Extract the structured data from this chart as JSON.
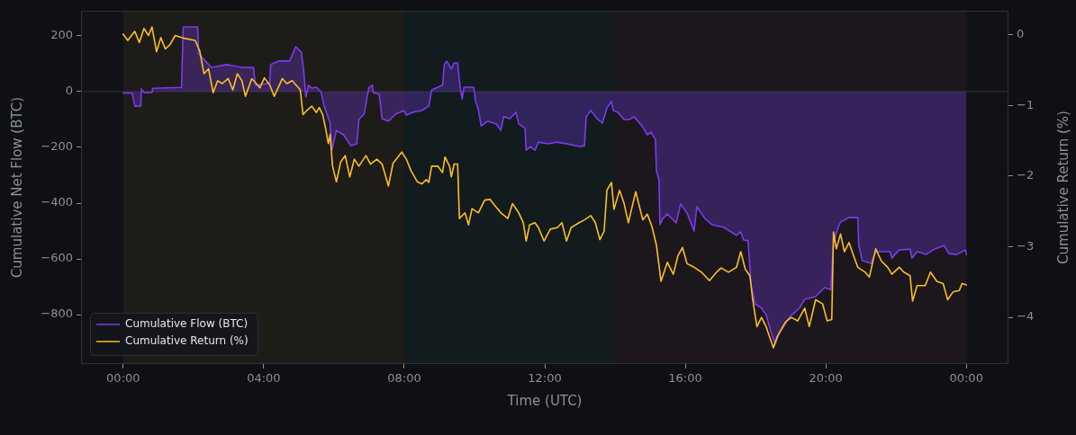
{
  "chart_data": {
    "type": "line",
    "xlabel": "Time (UTC)",
    "ylabel": "Cumulative Net Flow (BTC)",
    "y2label": "Cumulative Return (%)",
    "xlim": [
      -1.2,
      25.2
    ],
    "xticks": [
      {
        "value": 0,
        "label": "00:00"
      },
      {
        "value": 4,
        "label": "04:00"
      },
      {
        "value": 8,
        "label": "08:00"
      },
      {
        "value": 12,
        "label": "12:00"
      },
      {
        "value": 16,
        "label": "16:00"
      },
      {
        "value": 20,
        "label": "20:00"
      },
      {
        "value": 24,
        "label": "00:00"
      }
    ],
    "ylim": [
      -977,
      290
    ],
    "yticks": [
      {
        "value": -800,
        "label": "−800"
      },
      {
        "value": -600,
        "label": "−600"
      },
      {
        "value": -400,
        "label": "−400"
      },
      {
        "value": -200,
        "label": "−200"
      },
      0,
      200
    ],
    "y2lim": [
      -4.66,
      0.34
    ],
    "y2ticks": [
      {
        "value": -4,
        "label": "−4"
      },
      {
        "value": -3,
        "label": "−3"
      },
      {
        "value": -2,
        "label": "−2"
      },
      {
        "value": -1,
        "label": "−1"
      },
      0
    ],
    "series": [
      {
        "name": "Cumulative Flow (BTC)",
        "type": "area",
        "color": "#7c3aed",
        "x": [
          0,
          0.26,
          0.33,
          0.5,
          0.52,
          0.59,
          0.82,
          0.84,
          1.66,
          1.71,
          2.12,
          2.15,
          2.51,
          2.94,
          3.4,
          3.71,
          3.76,
          4.17,
          4.2,
          4.43,
          4.74,
          4.91,
          5.07,
          5.14,
          5.2,
          5.27,
          5.37,
          5.5,
          5.63,
          5.71,
          5.89,
          5.94,
          6.07,
          6.27,
          6.48,
          6.65,
          6.71,
          6.86,
          6.99,
          7.09,
          7.12,
          7.29,
          7.37,
          7.55,
          7.76,
          7.99,
          8.06,
          8.24,
          8.5,
          8.7,
          8.78,
          9.09,
          9.14,
          9.21,
          9.34,
          9.42,
          9.52,
          9.6,
          9.65,
          9.7,
          9.98,
          10.03,
          10.11,
          10.19,
          10.37,
          10.62,
          10.75,
          10.83,
          11.01,
          11.18,
          11.26,
          11.44,
          11.47,
          11.59,
          11.72,
          11.82,
          12.08,
          12.34,
          12.62,
          13,
          13.13,
          13.18,
          13.31,
          13.49,
          13.64,
          13.77,
          13.9,
          13.95,
          14.08,
          14.26,
          14.41,
          14.54,
          14.77,
          14.92,
          15.02,
          15.15,
          15.18,
          15.25,
          15.28,
          15.36,
          15.49,
          15.74,
          15.87,
          16.05,
          16.25,
          16.33,
          16.56,
          16.76,
          17.1,
          17.46,
          17.58,
          17.66,
          17.79,
          17.87,
          17.99,
          18.17,
          18.3,
          18.43,
          18.56,
          18.68,
          18.99,
          19.25,
          19.4,
          19.71,
          19.96,
          20.14,
          20.22,
          20.35,
          20.42,
          20.66,
          20.91,
          20.94,
          21.04,
          21.29,
          21.42,
          21.58,
          21.83,
          21.88,
          22.09,
          22.4,
          22.45,
          22.6,
          22.86,
          23.09,
          23.37,
          23.5,
          23.73,
          23.98,
          24
        ],
        "values": [
          -5,
          -6,
          -52,
          -52,
          10,
          -3,
          -3,
          12,
          15,
          232,
          232,
          135,
          87,
          97,
          87,
          87,
          23,
          30,
          97,
          110,
          110,
          161,
          142,
          71,
          -19,
          23,
          13,
          16,
          0,
          -48,
          -113,
          -210,
          -139,
          -155,
          -194,
          -187,
          -100,
          -80,
          13,
          23,
          -3,
          -10,
          -97,
          -106,
          -80,
          -68,
          -84,
          -74,
          -68,
          -52,
          6,
          23,
          97,
          110,
          81,
          103,
          103,
          6,
          -26,
          16,
          16,
          -35,
          -64,
          -123,
          -106,
          -116,
          -139,
          -90,
          -97,
          -74,
          -116,
          -132,
          -210,
          -197,
          -210,
          -181,
          -187,
          -181,
          -187,
          -197,
          -194,
          -90,
          -68,
          -97,
          -113,
          -58,
          -35,
          -68,
          -74,
          -100,
          -100,
          -90,
          -123,
          -155,
          -145,
          -171,
          -284,
          -316,
          -477,
          -455,
          -439,
          -471,
          -403,
          -435,
          -500,
          -413,
          -455,
          -477,
          -487,
          -516,
          -503,
          -532,
          -535,
          -694,
          -761,
          -777,
          -800,
          -858,
          -906,
          -865,
          -806,
          -777,
          -745,
          -735,
          -703,
          -710,
          -542,
          -487,
          -468,
          -452,
          -452,
          -552,
          -606,
          -616,
          -575,
          -574,
          -574,
          -597,
          -568,
          -565,
          -597,
          -574,
          -584,
          -565,
          -552,
          -581,
          -584,
          -568,
          -584
        ]
      },
      {
        "name": "Cumulative Return (%)",
        "type": "line",
        "axis": "y2",
        "color": "#fbbf24",
        "x": [
          0,
          0.13,
          0.33,
          0.46,
          0.59,
          0.72,
          0.82,
          0.95,
          1.07,
          1.2,
          1.33,
          1.48,
          1.74,
          2.05,
          2.18,
          2.3,
          2.43,
          2.56,
          2.69,
          2.82,
          2.99,
          3.12,
          3.25,
          3.38,
          3.48,
          3.66,
          3.79,
          3.89,
          4.02,
          4.17,
          4.3,
          4.53,
          4.66,
          4.81,
          5.04,
          5.12,
          5.25,
          5.37,
          5.5,
          5.58,
          5.68,
          5.76,
          5.84,
          5.89,
          5.96,
          6.07,
          6.19,
          6.32,
          6.45,
          6.58,
          6.71,
          6.91,
          7.04,
          7.22,
          7.37,
          7.55,
          7.68,
          7.93,
          8.06,
          8.19,
          8.37,
          8.5,
          8.63,
          8.7,
          8.78,
          8.96,
          9.09,
          9.16,
          9.29,
          9.34,
          9.42,
          9.52,
          9.57,
          9.73,
          9.83,
          9.93,
          10.11,
          10.29,
          10.44,
          10.57,
          10.75,
          10.95,
          11.08,
          11.26,
          11.39,
          11.47,
          11.57,
          11.72,
          11.82,
          11.98,
          12.16,
          12.36,
          12.49,
          12.62,
          12.75,
          12.98,
          13.13,
          13.31,
          13.44,
          13.57,
          13.69,
          13.77,
          13.9,
          13.97,
          14.13,
          14.26,
          14.38,
          14.59,
          14.79,
          14.92,
          15.05,
          15.18,
          15.31,
          15.49,
          15.66,
          15.79,
          15.92,
          16.05,
          16.25,
          16.46,
          16.69,
          16.89,
          17.02,
          17.23,
          17.46,
          17.58,
          17.71,
          17.84,
          17.92,
          18.04,
          18.17,
          18.3,
          18.43,
          18.51,
          18.61,
          18.86,
          19.02,
          19.2,
          19.4,
          19.53,
          19.71,
          19.91,
          20.04,
          20.17,
          20.22,
          20.3,
          20.42,
          20.53,
          20.66,
          20.78,
          20.91,
          21.12,
          21.24,
          21.42,
          21.58,
          21.76,
          21.88,
          22.09,
          22.22,
          22.4,
          22.47,
          22.6,
          22.83,
          22.98,
          23.16,
          23.34,
          23.47,
          23.62,
          23.8,
          23.88,
          24
        ],
        "values": [
          0.01,
          -0.08,
          0.05,
          -0.11,
          0.09,
          -0.01,
          0.11,
          -0.24,
          -0.04,
          -0.2,
          -0.14,
          -0.01,
          -0.05,
          -0.08,
          -0.23,
          -0.55,
          -0.48,
          -0.82,
          -0.65,
          -0.69,
          -0.62,
          -0.78,
          -0.55,
          -0.65,
          -0.87,
          -0.62,
          -0.69,
          -0.75,
          -0.61,
          -0.71,
          -0.87,
          -0.62,
          -0.69,
          -0.65,
          -0.78,
          -1.13,
          -1.06,
          -1.01,
          -1.1,
          -1.03,
          -1.13,
          -1.32,
          -1.54,
          -1.41,
          -1.86,
          -2.08,
          -1.8,
          -1.71,
          -2.01,
          -1.76,
          -1.86,
          -1.71,
          -1.83,
          -1.76,
          -1.83,
          -2.14,
          -1.82,
          -1.66,
          -1.76,
          -1.92,
          -2.08,
          -2.11,
          -2.05,
          -2.09,
          -1.86,
          -1.86,
          -1.95,
          -1.73,
          -1.86,
          -2.01,
          -1.83,
          -1.83,
          -2.6,
          -2.52,
          -2.69,
          -2.46,
          -2.52,
          -2.34,
          -2.33,
          -2.41,
          -2.52,
          -2.6,
          -2.39,
          -2.52,
          -2.66,
          -2.92,
          -2.69,
          -2.66,
          -2.73,
          -2.92,
          -2.75,
          -2.73,
          -2.66,
          -2.92,
          -2.73,
          -2.66,
          -2.62,
          -2.56,
          -2.66,
          -2.9,
          -2.78,
          -2.2,
          -2.09,
          -2.47,
          -2.2,
          -2.39,
          -2.66,
          -2.22,
          -2.62,
          -2.54,
          -2.71,
          -2.98,
          -3.49,
          -3.22,
          -3.39,
          -3.13,
          -3.01,
          -3.24,
          -3.29,
          -3.36,
          -3.48,
          -3.36,
          -3.3,
          -3.36,
          -3.29,
          -3.07,
          -3.32,
          -3.41,
          -3.75,
          -4.13,
          -4,
          -4.13,
          -4.32,
          -4.43,
          -4.28,
          -4.06,
          -4,
          -4.05,
          -3.87,
          -4.13,
          -3.75,
          -3.81,
          -4.05,
          -4.03,
          -2.79,
          -3.03,
          -2.82,
          -3.07,
          -2.94,
          -3.11,
          -3.29,
          -3.36,
          -3.43,
          -3.03,
          -3.2,
          -3.29,
          -3.39,
          -3.29,
          -3.36,
          -3.41,
          -3.77,
          -3.55,
          -3.55,
          -3.36,
          -3.49,
          -3.52,
          -3.75,
          -3.64,
          -3.62,
          -3.52,
          -3.54
        ]
      }
    ],
    "bands": [
      {
        "axis": "x",
        "from": 0,
        "to": 8,
        "color": "#1e1c19"
      },
      {
        "axis": "x",
        "from": 8,
        "to": 14,
        "color": "#121b1e"
      },
      {
        "axis": "x",
        "from": 14,
        "to": 24,
        "color": "#1c171c"
      }
    ],
    "ref_lines": [
      {
        "axis": "y",
        "value": 0,
        "color": "#34323e"
      }
    ],
    "legend": "bottom left"
  }
}
